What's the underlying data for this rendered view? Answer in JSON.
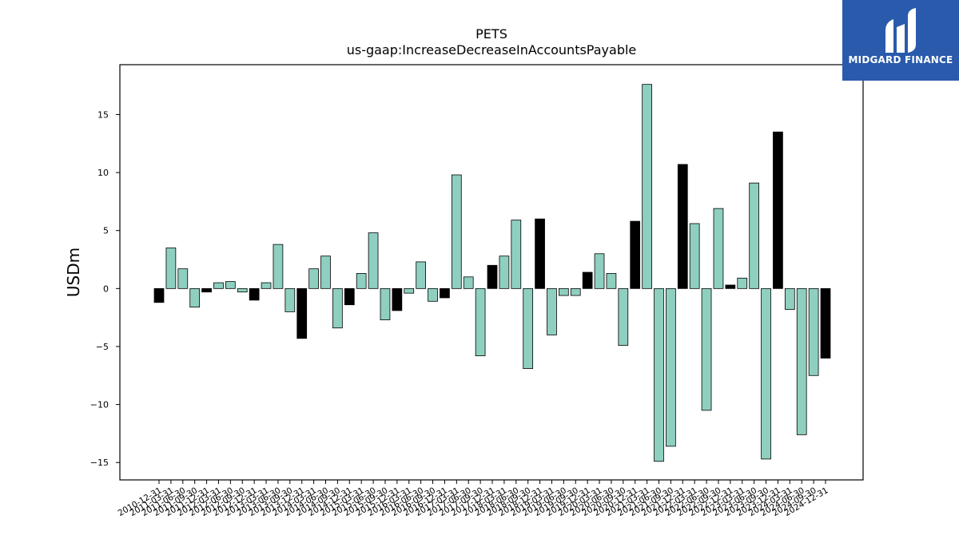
{
  "chart_data": {
    "type": "bar",
    "title": "PETS",
    "subtitle": "us-gaap:IncreaseDecreaseInAccountsPayable",
    "xlabel": "",
    "ylabel": "USDm",
    "ylim": [
      -16.5,
      19.3
    ],
    "yticks": [
      -15,
      -10,
      -5,
      0,
      5,
      10,
      15
    ],
    "ytick_labels": [
      "−15",
      "−10",
      "−5",
      "0",
      "5",
      "10",
      "15"
    ],
    "grid": false,
    "colors": {
      "quarterly": "#8ecfc0",
      "annual": "#000000",
      "edge": "#000000"
    },
    "categories": [
      "2010-12-31",
      "2011-03-31",
      "2011-06-30",
      "2011-09-30",
      "2011-12-31",
      "2012-03-31",
      "2012-06-30",
      "2012-09-30",
      "2012-12-31",
      "2013-03-31",
      "2013-06-30",
      "2013-09-30",
      "2013-12-31",
      "2014-03-31",
      "2014-06-30",
      "2014-09-30",
      "2014-12-31",
      "2015-03-31",
      "2015-06-30",
      "2015-09-30",
      "2015-12-31",
      "2016-03-31",
      "2016-06-30",
      "2016-09-30",
      "2016-12-31",
      "2017-03-31",
      "2017-06-30",
      "2017-09-30",
      "2017-12-31",
      "2018-03-31",
      "2018-06-30",
      "2018-09-30",
      "2018-12-31",
      "2019-03-31",
      "2019-06-30",
      "2019-09-30",
      "2019-12-31",
      "2020-03-31",
      "2020-06-30",
      "2020-09-30",
      "2020-12-31",
      "2021-03-31",
      "2021-06-30",
      "2021-09-30",
      "2021-12-31",
      "2022-03-31",
      "2022-06-30",
      "2022-09-30",
      "2022-12-31",
      "2023-03-31",
      "2023-06-30",
      "2023-09-30",
      "2023-12-31",
      "2024-03-31",
      "2024-06-30",
      "2024-09-30",
      "2024-12-31"
    ],
    "values": [
      -1.2,
      3.5,
      1.7,
      -1.6,
      -0.3,
      0.5,
      0.6,
      -0.3,
      -1.0,
      0.5,
      3.8,
      -2.0,
      -4.3,
      1.7,
      2.8,
      -3.4,
      -1.4,
      1.3,
      4.8,
      -2.7,
      -1.9,
      -0.4,
      2.3,
      -1.1,
      -0.8,
      9.8,
      1.0,
      -5.8,
      2.0,
      2.8,
      5.9,
      -6.9,
      6.0,
      -4.0,
      -0.6,
      -0.6,
      1.4,
      3.0,
      1.3,
      -4.9,
      5.8,
      17.6,
      -14.9,
      -13.6,
      10.7,
      5.6,
      -10.5,
      6.9,
      0.3,
      0.9,
      9.1,
      -14.7,
      13.5,
      -1.8,
      -12.6,
      -7.5,
      -6.0
    ],
    "annual": [
      true,
      false,
      false,
      false,
      true,
      false,
      false,
      false,
      true,
      false,
      false,
      false,
      true,
      false,
      false,
      false,
      true,
      false,
      false,
      false,
      true,
      false,
      false,
      false,
      true,
      false,
      false,
      false,
      true,
      false,
      false,
      false,
      true,
      false,
      false,
      false,
      true,
      false,
      false,
      false,
      true,
      false,
      false,
      false,
      true,
      false,
      false,
      false,
      true,
      false,
      false,
      false,
      true,
      false,
      false,
      false,
      true
    ]
  },
  "logo": {
    "text": "MIDGARD FINANCE",
    "bg_color": "#2a5aab"
  }
}
